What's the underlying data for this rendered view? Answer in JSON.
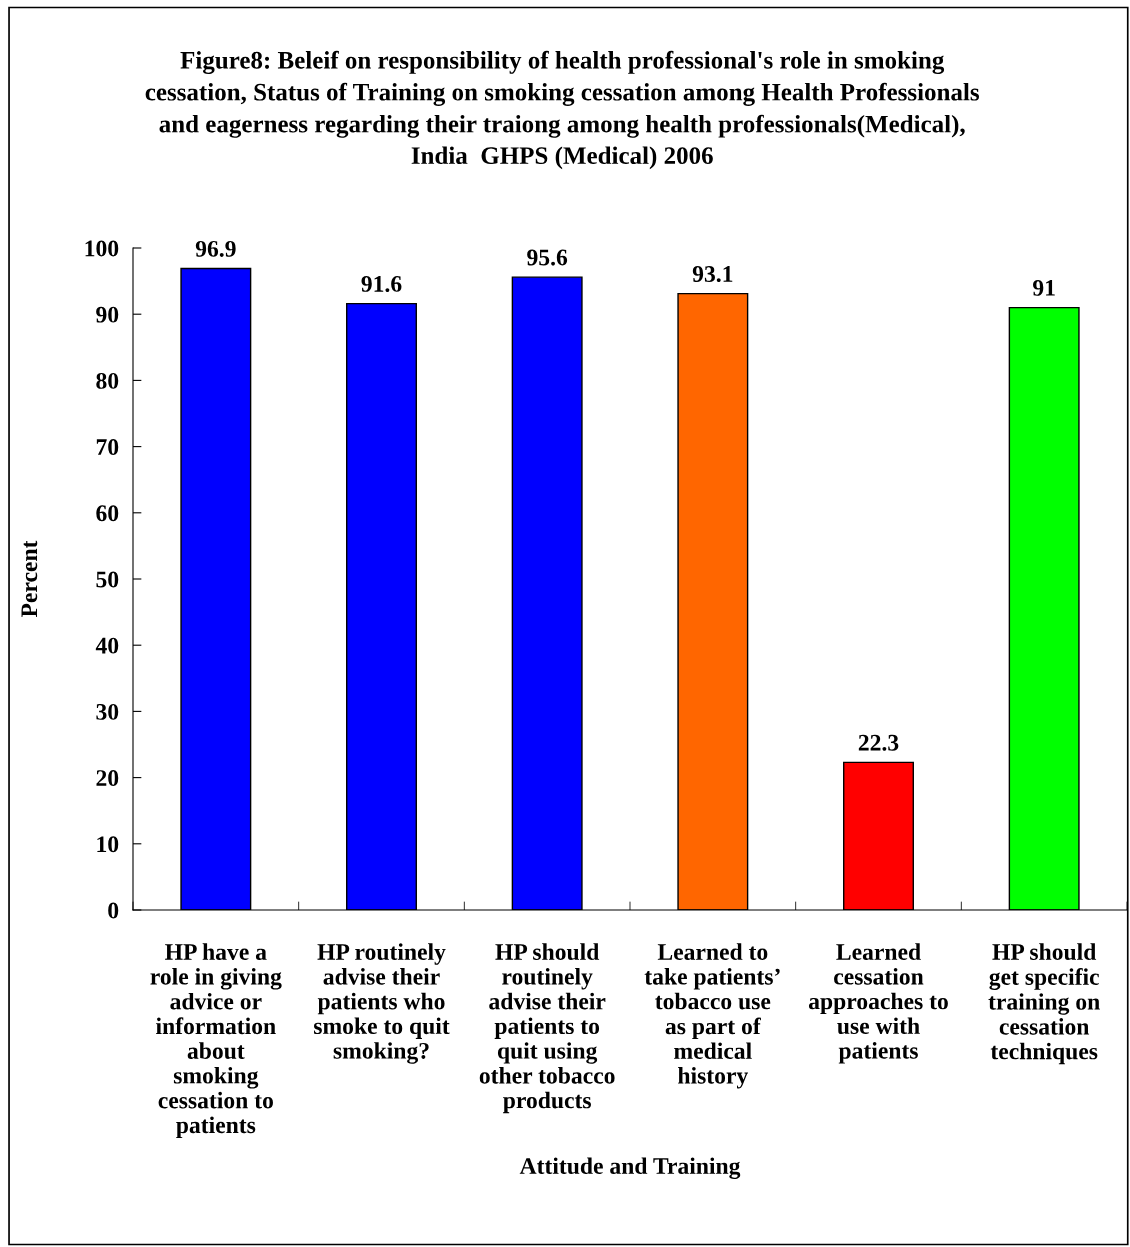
{
  "chart_data": {
    "type": "bar",
    "title": "Figure8: Beleif on responsibility of health professional's role in smoking\ncessation, Status of Training on smoking cessation among Health Professionals\nand eagerness regarding their traiong among health professionals(Medical),\nIndia  GHPS (Medical) 2006",
    "xlabel": "Attitude and Training",
    "ylabel": "Percent",
    "categories": [
      "HP have a\nrole in giving\nadvice or\ninformation\nabout\nsmoking\ncessation to\npatients",
      "HP routinely\nadvise their\npatients who\nsmoke to quit\nsmoking?",
      "HP should\nroutinely\nadvise their\npatients to\nquit using\nother tobacco\nproducts",
      "Learned to\ntake patients’\ntobacco use\nas part of\nmedical\nhistory",
      "Learned\ncessation\napproaches to\nuse with\npatients",
      "HP should\nget specific\ntraining on\ncessation\ntechniques"
    ],
    "values": [
      96.9,
      91.6,
      95.6,
      93.1,
      22.3,
      91
    ],
    "colors": [
      "#0000ff",
      "#0000ff",
      "#0000ff",
      "#ff6600",
      "#ff0000",
      "#00ff00"
    ],
    "ylim": [
      0,
      100
    ],
    "yticks": [
      0,
      10,
      20,
      30,
      40,
      50,
      60,
      70,
      80,
      90,
      100
    ],
    "data_labels": true,
    "grid": false,
    "legend": false
  }
}
